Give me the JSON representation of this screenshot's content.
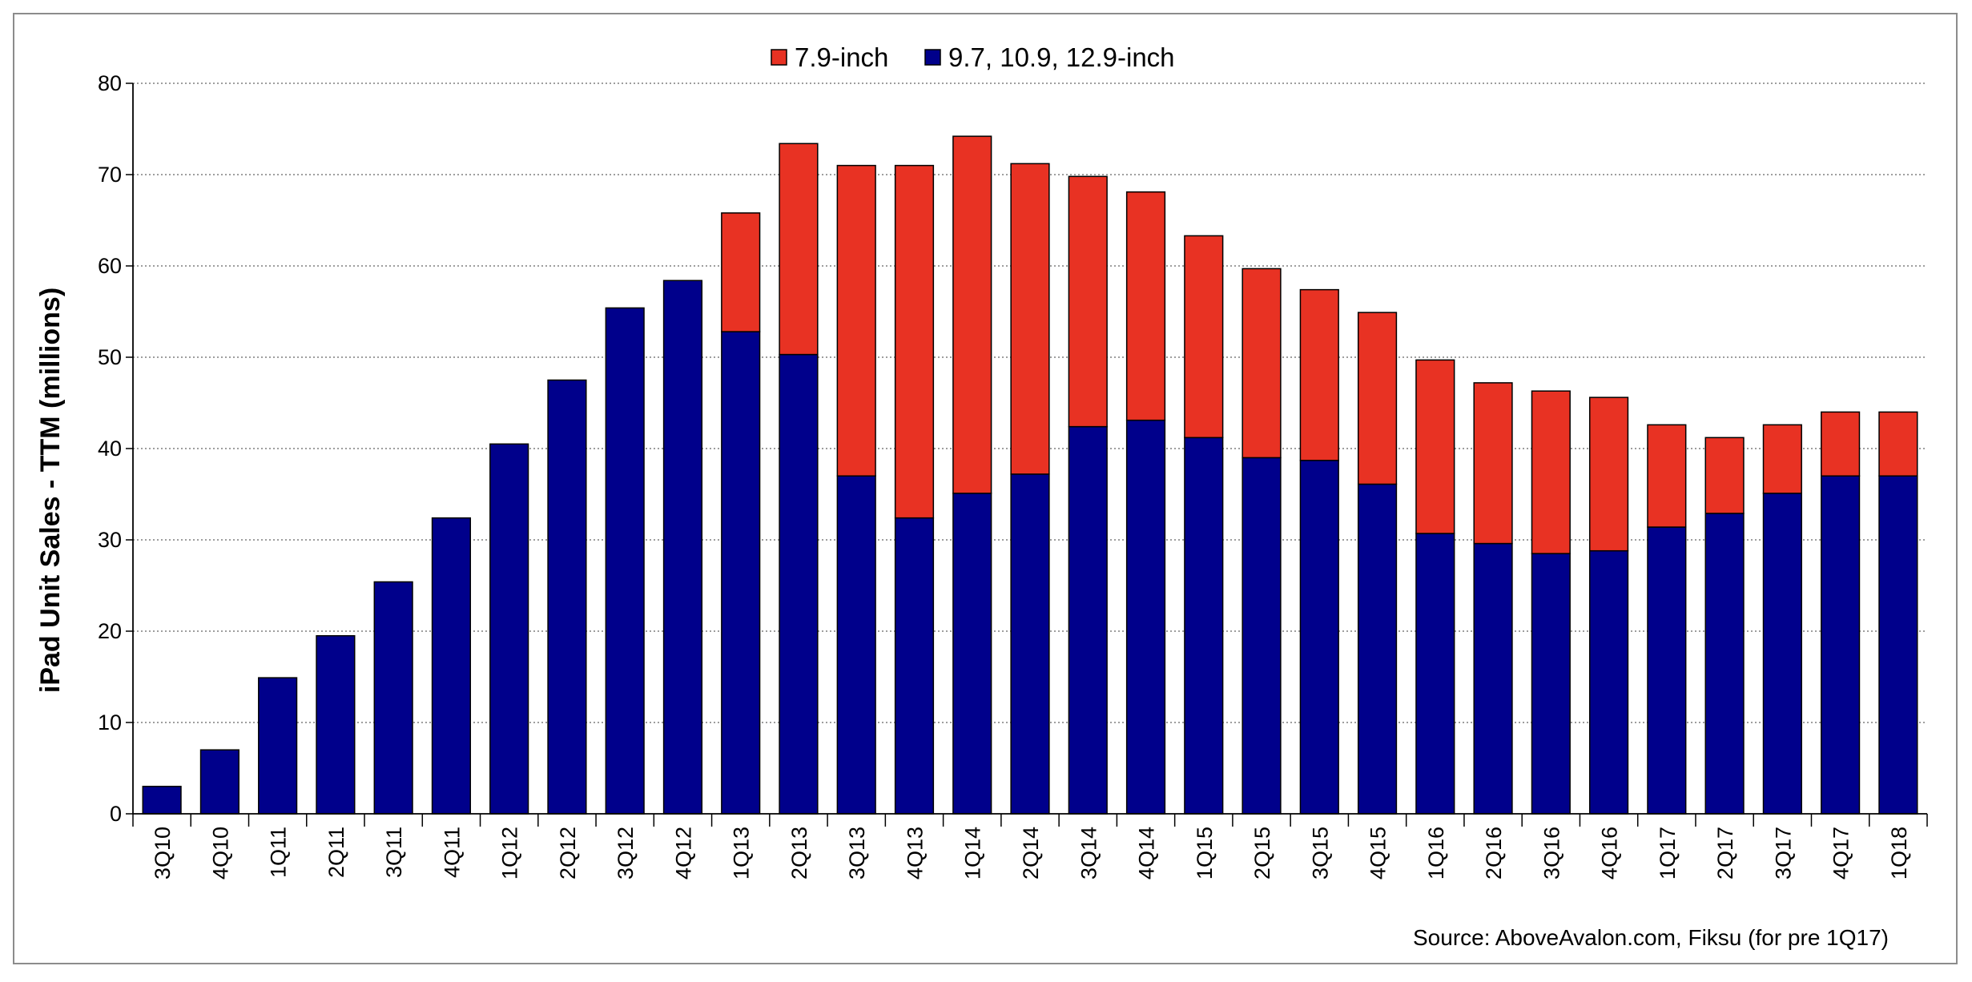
{
  "chart_data": {
    "type": "bar",
    "stacked": true,
    "title": "",
    "xlabel": "",
    "ylabel": "iPad Unit Sales - TTM (millions)",
    "ylim": [
      0,
      80
    ],
    "yticks": [
      0,
      10,
      20,
      30,
      40,
      50,
      60,
      70,
      80
    ],
    "grid": true,
    "legend_position": "top-center",
    "categories": [
      "3Q10",
      "4Q10",
      "1Q11",
      "2Q11",
      "3Q11",
      "4Q11",
      "1Q12",
      "2Q12",
      "3Q12",
      "4Q12",
      "1Q13",
      "2Q13",
      "3Q13",
      "4Q13",
      "1Q14",
      "2Q14",
      "3Q14",
      "4Q14",
      "1Q15",
      "2Q15",
      "3Q15",
      "4Q15",
      "1Q16",
      "2Q16",
      "3Q16",
      "4Q16",
      "1Q17",
      "2Q17",
      "3Q17",
      "4Q17",
      "1Q18"
    ],
    "series": [
      {
        "name": "9.7, 10.9, 12.9-inch",
        "color": "#00008B",
        "values": [
          3.0,
          7.0,
          14.9,
          19.5,
          25.4,
          32.4,
          40.5,
          47.5,
          55.4,
          58.4,
          52.8,
          50.3,
          37.0,
          32.4,
          35.1,
          37.2,
          42.4,
          43.1,
          41.2,
          39.0,
          38.7,
          36.1,
          30.7,
          29.6,
          28.5,
          28.8,
          31.4,
          32.9,
          35.1,
          37.0,
          37.0
        ]
      },
      {
        "name": "7.9-inch",
        "color": "#E83223",
        "values": [
          0,
          0,
          0,
          0,
          0,
          0,
          0,
          0,
          0,
          0,
          13.0,
          23.1,
          34.0,
          38.6,
          39.1,
          34.0,
          27.4,
          25.0,
          22.1,
          20.7,
          18.7,
          18.8,
          19.0,
          17.6,
          17.8,
          16.8,
          11.2,
          8.3,
          7.5,
          7.0,
          7.0
        ]
      }
    ]
  },
  "legend": {
    "items": [
      {
        "label": "7.9-inch",
        "color": "#E83223"
      },
      {
        "label": "9.7, 10.9, 12.9-inch",
        "color": "#00008B"
      }
    ]
  },
  "source": "Source: AboveAvalon.com, Fiksu (for pre 1Q17)"
}
